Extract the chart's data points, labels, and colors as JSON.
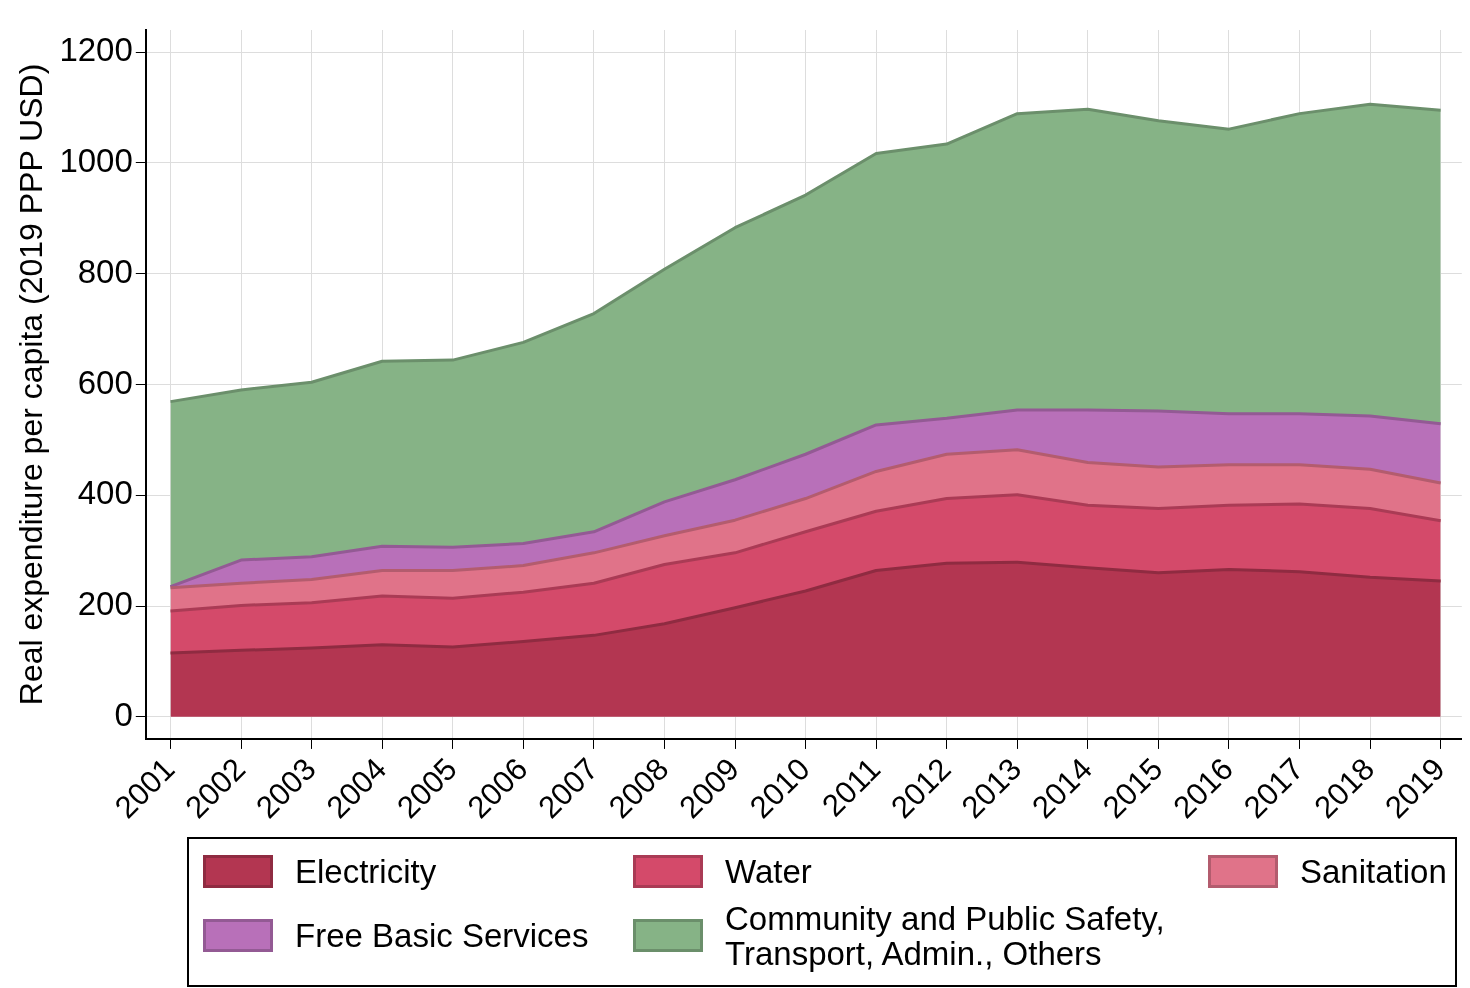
{
  "chart_data": {
    "type": "area",
    "ylabel": "Real expenditure per capita (2019 PPP USD)",
    "x": [
      2001,
      2002,
      2003,
      2004,
      2005,
      2006,
      2007,
      2008,
      2009,
      2010,
      2011,
      2012,
      2013,
      2014,
      2015,
      2016,
      2017,
      2018,
      2019
    ],
    "xlim": [
      2000.65,
      2019.3
    ],
    "xticks": [
      2001,
      2002,
      2003,
      2004,
      2005,
      2006,
      2007,
      2008,
      2009,
      2010,
      2011,
      2012,
      2013,
      2014,
      2015,
      2016,
      2017,
      2018,
      2019
    ],
    "ylim": [
      -40,
      1240
    ],
    "yticks": [
      0,
      200,
      400,
      600,
      800,
      1000,
      1200
    ],
    "stacked": true,
    "grid": true,
    "legend": "bottom",
    "series": [
      {
        "name": "Electricity",
        "color": "#b33651",
        "values": [
          115,
          120,
          124,
          130,
          126,
          136,
          147,
          168,
          197,
          227,
          264,
          277,
          279,
          269,
          260,
          266,
          262,
          252,
          245
        ]
      },
      {
        "name": "Water",
        "color": "#d44a6a",
        "values": [
          76,
          81,
          82,
          88,
          88,
          89,
          94,
          107,
          99,
          107,
          107,
          117,
          122,
          113,
          116,
          116,
          122,
          124,
          109
        ]
      },
      {
        "name": "Sanitation",
        "color": "#e07389",
        "values": [
          42,
          40,
          42,
          46,
          50,
          48,
          55,
          52,
          59,
          60,
          72,
          80,
          81,
          77,
          75,
          73,
          71,
          71,
          68
        ]
      },
      {
        "name": "Free Basic Services",
        "color": "#b870b9",
        "values": [
          2,
          42,
          41,
          44,
          42,
          40,
          38,
          61,
          73,
          80,
          84,
          65,
          72,
          95,
          101,
          92,
          92,
          96,
          107
        ]
      },
      {
        "name": "Community and Public Safety, Transport, Admin., Others",
        "color": "#86b386",
        "values": [
          334,
          307,
          315,
          334,
          338,
          363,
          394,
          420,
          455,
          468,
          490,
          495,
          535,
          543,
          524,
          514,
          542,
          563,
          566
        ]
      }
    ]
  }
}
